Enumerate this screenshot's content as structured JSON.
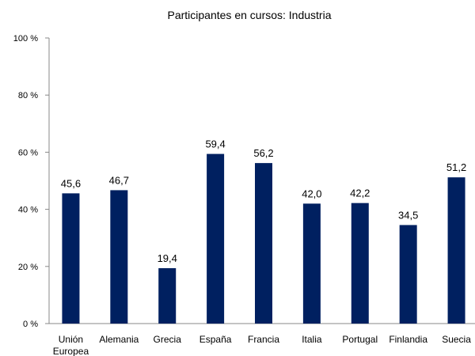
{
  "chart_data": {
    "type": "bar",
    "title": "Participantes en cursos: Industria",
    "categories": [
      "Unión Europea",
      "Alemania",
      "Grecia",
      "España",
      "Francia",
      "Italia",
      "Portugal",
      "Finlandia",
      "Suecia"
    ],
    "values": [
      45.6,
      46.7,
      19.4,
      59.4,
      56.2,
      42.0,
      42.2,
      34.5,
      51.2
    ],
    "value_labels": [
      "45,6",
      "46,7",
      "19,4",
      "59,4",
      "56,2",
      "42,0",
      "42,2",
      "34,5",
      "51,2"
    ],
    "color": "#002060",
    "ylim": [
      0,
      100
    ],
    "yticks": [
      {
        "value": 0,
        "label": "0 %"
      },
      {
        "value": 20,
        "label": "20 %"
      },
      {
        "value": 40,
        "label": "40 %"
      },
      {
        "value": 60,
        "label": "60 %"
      },
      {
        "value": 80,
        "label": "80 %"
      },
      {
        "value": 100,
        "label": "100 %"
      }
    ],
    "grid": false
  }
}
